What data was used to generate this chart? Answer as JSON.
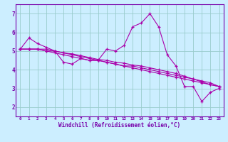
{
  "xlabel": "Windchill (Refroidissement éolien,°C)",
  "bg_color": "#cceeff",
  "line_color": "#aa00aa",
  "grid_color": "#99cccc",
  "axis_color": "#7700aa",
  "spine_color": "#7700aa",
  "xlim": [
    -0.5,
    23.5
  ],
  "ylim": [
    1.5,
    7.5
  ],
  "xticks": [
    0,
    1,
    2,
    3,
    4,
    5,
    6,
    7,
    8,
    9,
    10,
    11,
    12,
    13,
    14,
    15,
    16,
    17,
    18,
    19,
    20,
    21,
    22,
    23
  ],
  "yticks": [
    2,
    3,
    4,
    5,
    6,
    7
  ],
  "series": [
    [
      5.1,
      5.7,
      5.4,
      5.2,
      5.0,
      4.4,
      4.3,
      4.6,
      4.5,
      4.5,
      5.1,
      5.0,
      5.3,
      6.3,
      6.5,
      7.0,
      6.3,
      4.8,
      4.2,
      3.1,
      3.1,
      2.3,
      2.8,
      3.0
    ],
    [
      5.1,
      5.1,
      5.1,
      5.1,
      5.0,
      4.9,
      4.8,
      4.7,
      4.6,
      4.5,
      4.4,
      4.3,
      4.2,
      4.1,
      4.0,
      3.9,
      3.8,
      3.7,
      3.6,
      3.5,
      3.4,
      3.3,
      3.2,
      3.1
    ],
    [
      5.1,
      5.1,
      5.1,
      5.0,
      4.9,
      4.8,
      4.7,
      4.6,
      4.5,
      4.5,
      4.4,
      4.3,
      4.2,
      4.2,
      4.1,
      4.0,
      3.9,
      3.8,
      3.7,
      3.6,
      3.5,
      3.4,
      3.3,
      3.1
    ],
    [
      5.1,
      5.1,
      5.1,
      5.0,
      5.0,
      4.9,
      4.85,
      4.75,
      4.65,
      4.55,
      4.5,
      4.4,
      4.35,
      4.25,
      4.2,
      4.1,
      4.0,
      3.9,
      3.8,
      3.65,
      3.5,
      3.35,
      3.2,
      3.1
    ]
  ]
}
